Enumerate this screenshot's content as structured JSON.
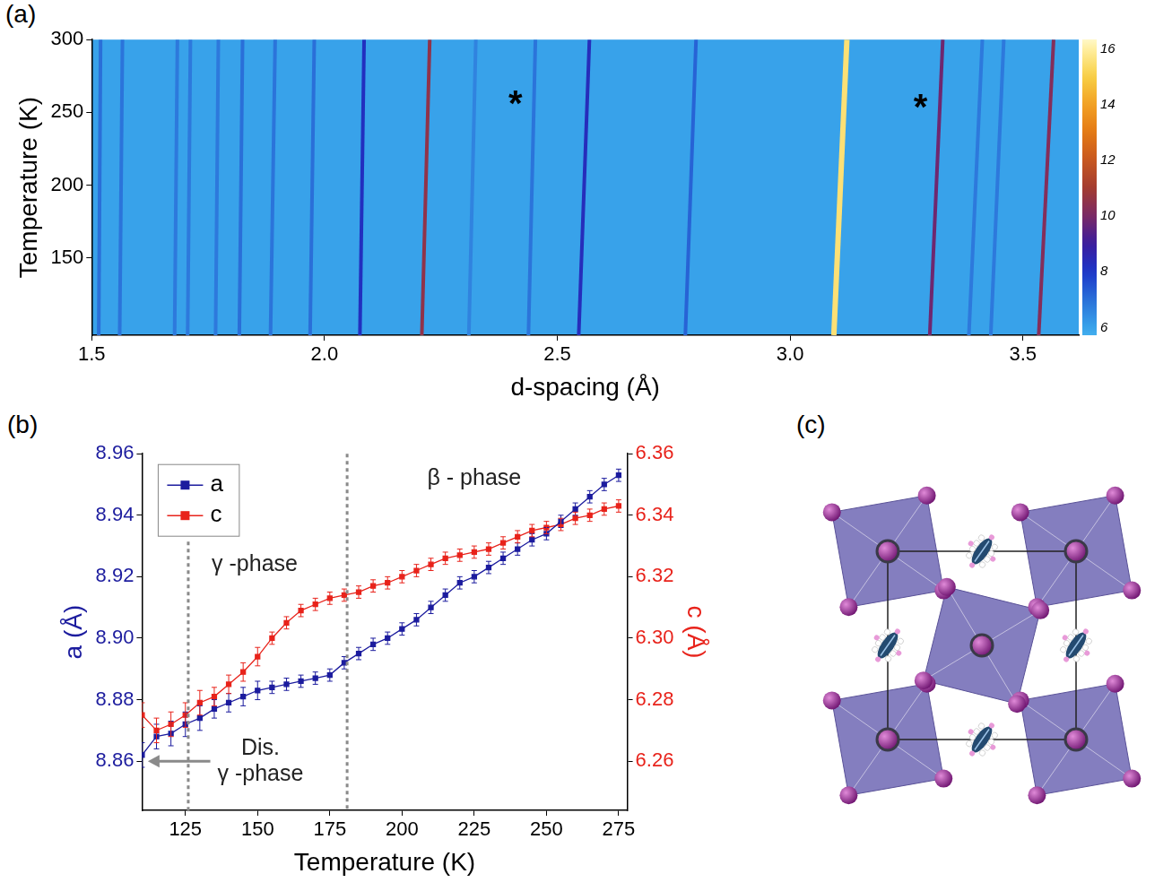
{
  "chart_data": [
    {
      "title": "(a)",
      "type": "heatmap",
      "x_label": "d-spacing (Å)",
      "y_label": "Temperature (K)",
      "xlim": [
        1.5,
        3.62
      ],
      "ylim": [
        97,
        300
      ],
      "xticks": [
        1.5,
        {
          "value": 2,
          "label": "2.0"
        },
        2.5,
        {
          "value": 3,
          "label": "3.0"
        },
        3.5
      ],
      "yticks": [
        150,
        200,
        250,
        300
      ],
      "series": [
        {
          "x": [
            1.515,
            1.519
          ],
          "values": [
            97,
            300
          ],
          "intensity": 7
        },
        {
          "x": [
            1.56,
            1.566
          ],
          "values": [
            97,
            300
          ],
          "intensity": 6.9
        },
        {
          "x": [
            1.678,
            1.684
          ],
          "values": [
            97,
            300
          ],
          "intensity": 6.8
        },
        {
          "x": [
            1.706,
            1.712
          ],
          "values": [
            97,
            300
          ],
          "intensity": 6.8
        },
        {
          "x": [
            1.766,
            1.772
          ],
          "values": [
            97,
            300
          ],
          "intensity": 6.8
        },
        {
          "x": [
            1.817,
            1.824
          ],
          "values": [
            97,
            300
          ],
          "intensity": 7
        },
        {
          "x": [
            1.884,
            1.894
          ],
          "values": [
            97,
            300
          ],
          "intensity": 6.9
        },
        {
          "x": [
            1.969,
            1.978
          ],
          "values": [
            97,
            300
          ],
          "intensity": 7
        },
        {
          "x": [
            2.076,
            2.085
          ],
          "values": [
            97,
            300
          ],
          "intensity": 8.2
        },
        {
          "x": [
            2.209,
            2.226
          ],
          "values": [
            97,
            300
          ],
          "intensity": 10.5
        },
        {
          "x": [
            2.31,
            2.325
          ],
          "values": [
            97,
            300
          ],
          "intensity": 6.6
        },
        {
          "x": [
            2.438,
            2.453
          ],
          "values": [
            97,
            300
          ],
          "intensity": 6.9
        },
        {
          "x": [
            2.546,
            2.569
          ],
          "values": [
            97,
            300
          ],
          "intensity": 8.3
        },
        {
          "x": [
            2.775,
            2.798
          ],
          "values": [
            97,
            300
          ],
          "intensity": 7.2
        },
        {
          "x": [
            3.094,
            3.122
          ],
          "values": [
            97,
            300
          ],
          "intensity": 15.5
        },
        {
          "x": [
            3.3,
            3.328
          ],
          "values": [
            97,
            300
          ],
          "intensity": 9.8
        },
        {
          "x": [
            3.384,
            3.413
          ],
          "values": [
            97,
            300
          ],
          "intensity": 6.8
        },
        {
          "x": [
            3.431,
            3.459
          ],
          "values": [
            97,
            300
          ],
          "intensity": 6.8
        },
        {
          "x": [
            3.534,
            3.566
          ],
          "values": [
            97,
            300
          ],
          "intensity": 10.2
        }
      ],
      "background_intensity": 6,
      "colorbar": {
        "range": [
          5.7,
          16.3
        ],
        "ticks": [
          6,
          8,
          10,
          12,
          14,
          16
        ]
      },
      "annotations": [
        {
          "text": "*",
          "x": 2.41,
          "y": 261
        },
        {
          "text": "*",
          "x": 3.28,
          "y": 258
        }
      ]
    },
    {
      "title": "(b)",
      "type": "line",
      "x_label": "Temperature (K)",
      "y_label": "a (Å)",
      "y2_label": "c (Å)",
      "xlim": [
        110,
        278
      ],
      "xticks": [
        125,
        150,
        175,
        200,
        225,
        250,
        275
      ],
      "ylim": [
        8.844,
        8.96
      ],
      "yticks": [
        8.86,
        8.88,
        {
          "value": 8.9,
          "label": "8.90"
        },
        8.92,
        8.94,
        8.96
      ],
      "y2lim": [
        6.244,
        6.36
      ],
      "y2ticks": [
        6.26,
        6.28,
        {
          "value": 6.3,
          "label": "6.30"
        },
        6.32,
        6.34,
        6.36
      ],
      "x": [
        110,
        115,
        120,
        125,
        130,
        135,
        140,
        145,
        150,
        155,
        160,
        165,
        170,
        175,
        180,
        185,
        190,
        195,
        200,
        205,
        210,
        215,
        220,
        225,
        230,
        235,
        240,
        245,
        250,
        255,
        260,
        265,
        270,
        275
      ],
      "series": [
        {
          "name": "a",
          "color": "#1c1c9e",
          "marker": "square",
          "values": [
            8.862,
            8.868,
            8.869,
            8.872,
            8.874,
            8.877,
            8.879,
            8.881,
            8.883,
            8.884,
            8.885,
            8.886,
            8.887,
            8.888,
            8.892,
            8.895,
            8.898,
            8.9,
            8.903,
            8.906,
            8.91,
            8.914,
            8.918,
            8.92,
            8.923,
            8.926,
            8.929,
            8.932,
            8.934,
            8.938,
            8.942,
            8.946,
            8.95,
            8.953
          ],
          "errors": [
            0.004,
            0.004,
            0.004,
            0.004,
            0.004,
            0.003,
            0.003,
            0.003,
            0.003,
            0.002,
            0.002,
            0.002,
            0.002,
            0.002,
            0.002,
            0.002,
            0.002,
            0.002,
            0.002,
            0.002,
            0.002,
            0.002,
            0.002,
            0.002,
            0.002,
            0.002,
            0.002,
            0.002,
            0.002,
            0.002,
            0.002,
            0.002,
            0.002,
            0.002
          ]
        },
        {
          "name": "c",
          "color": "#e8231b",
          "marker": "square",
          "axis": "y2",
          "values": [
            6.275,
            6.27,
            6.272,
            6.275,
            6.279,
            6.281,
            6.285,
            6.289,
            6.294,
            6.3,
            6.305,
            6.309,
            6.311,
            6.313,
            6.314,
            6.315,
            6.317,
            6.318,
            6.32,
            6.322,
            6.324,
            6.326,
            6.327,
            6.328,
            6.329,
            6.331,
            6.333,
            6.335,
            6.336,
            6.337,
            6.339,
            6.34,
            6.342,
            6.343
          ],
          "errors": [
            0.004,
            0.004,
            0.004,
            0.004,
            0.004,
            0.003,
            0.003,
            0.003,
            0.003,
            0.002,
            0.002,
            0.002,
            0.002,
            0.002,
            0.002,
            0.002,
            0.002,
            0.002,
            0.002,
            0.002,
            0.002,
            0.002,
            0.002,
            0.002,
            0.002,
            0.002,
            0.002,
            0.002,
            0.002,
            0.002,
            0.002,
            0.002,
            0.002,
            0.002
          ]
        }
      ],
      "legend": "upper left",
      "vlines": [
        126,
        181
      ],
      "annotations": [
        {
          "text": "β - phase",
          "x": 225,
          "y": 8.952
        },
        {
          "text": "γ -phase",
          "x": 149,
          "y": 8.924
        },
        {
          "text": "Dis.\nγ -phase",
          "x": 151,
          "y": 8.86,
          "arrow_to": 112
        }
      ]
    }
  ],
  "diagram": {
    "title": "(c)"
  }
}
